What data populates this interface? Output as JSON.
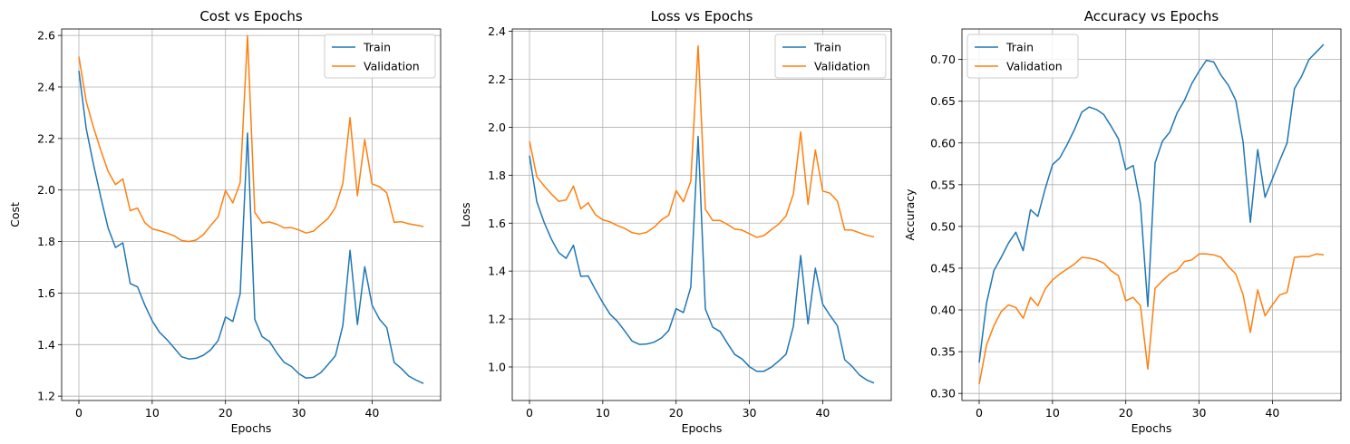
{
  "figure": {
    "colors": {
      "train": "#1f77b4",
      "validation": "#ff7f0e",
      "grid": "#b0b0b0",
      "axes": "#000000"
    }
  },
  "chart_data": [
    {
      "type": "line",
      "title": "Cost vs Epochs",
      "xlabel": "Epochs",
      "ylabel": "Cost",
      "xlim": [
        -2.35,
        49.35
      ],
      "ylim": [
        1.183,
        2.625
      ],
      "xticks": [
        0,
        10,
        20,
        30,
        40
      ],
      "yticks": [
        1.2,
        1.4,
        1.6,
        1.8,
        2.0,
        2.2,
        2.4,
        2.6
      ],
      "ytick_labels": [
        "1.2",
        "1.4",
        "1.6",
        "1.8",
        "2.0",
        "2.2",
        "2.4",
        "2.6"
      ],
      "grid": true,
      "legend": "upper right",
      "x": [
        0,
        1,
        2,
        3,
        4,
        5,
        6,
        7,
        8,
        9,
        10,
        11,
        12,
        13,
        14,
        15,
        16,
        17,
        18,
        19,
        20,
        21,
        22,
        23,
        24,
        25,
        26,
        27,
        28,
        29,
        30,
        31,
        32,
        33,
        34,
        35,
        36,
        37,
        38,
        39,
        40,
        41,
        42,
        43,
        44,
        45,
        46,
        47
      ],
      "series": [
        {
          "name": "Train",
          "color": "#1f77b4",
          "values": [
            2.463,
            2.238,
            2.098,
            1.97,
            1.852,
            1.777,
            1.795,
            1.637,
            1.624,
            1.553,
            1.492,
            1.448,
            1.42,
            1.387,
            1.353,
            1.344,
            1.347,
            1.359,
            1.38,
            1.416,
            1.507,
            1.49,
            1.597,
            2.221,
            1.498,
            1.431,
            1.412,
            1.368,
            1.331,
            1.315,
            1.287,
            1.27,
            1.273,
            1.291,
            1.323,
            1.357,
            1.473,
            1.766,
            1.478,
            1.702,
            1.553,
            1.499,
            1.466,
            1.331,
            1.307,
            1.278,
            1.262,
            1.249
          ]
        },
        {
          "name": "Validation",
          "color": "#ff7f0e",
          "values": [
            2.518,
            2.344,
            2.242,
            2.153,
            2.072,
            2.021,
            2.043,
            1.92,
            1.93,
            1.873,
            1.849,
            1.842,
            1.833,
            1.822,
            1.804,
            1.8,
            1.806,
            1.827,
            1.863,
            1.896,
            1.998,
            1.95,
            2.028,
            2.599,
            1.913,
            1.872,
            1.876,
            1.867,
            1.853,
            1.854,
            1.845,
            1.833,
            1.84,
            1.866,
            1.89,
            1.933,
            2.025,
            2.281,
            1.978,
            2.196,
            2.024,
            2.013,
            1.989,
            1.875,
            1.877,
            1.869,
            1.864,
            1.858
          ]
        }
      ]
    },
    {
      "type": "line",
      "title": "Loss vs Epochs",
      "xlabel": "Epochs",
      "ylabel": "Loss",
      "xlim": [
        -2.35,
        49.35
      ],
      "ylim": [
        0.86,
        2.41
      ],
      "xticks": [
        0,
        10,
        20,
        30,
        40
      ],
      "yticks": [
        1.0,
        1.2,
        1.4,
        1.6,
        1.8,
        2.0,
        2.2,
        2.4
      ],
      "ytick_labels": [
        "1.0",
        "1.2",
        "1.4",
        "1.6",
        "1.8",
        "2.0",
        "2.2",
        "2.4"
      ],
      "grid": true,
      "legend": "upper right",
      "x": [
        0,
        1,
        2,
        3,
        4,
        5,
        6,
        7,
        8,
        9,
        10,
        11,
        12,
        13,
        14,
        15,
        16,
        17,
        18,
        19,
        20,
        21,
        22,
        23,
        24,
        25,
        26,
        27,
        28,
        29,
        30,
        31,
        32,
        33,
        34,
        35,
        36,
        37,
        38,
        39,
        40,
        41,
        42,
        43,
        44,
        45,
        46,
        47
      ],
      "series": [
        {
          "name": "Train",
          "color": "#1f77b4",
          "values": [
            1.882,
            1.689,
            1.603,
            1.532,
            1.477,
            1.453,
            1.508,
            1.378,
            1.38,
            1.322,
            1.268,
            1.22,
            1.19,
            1.15,
            1.108,
            1.094,
            1.096,
            1.103,
            1.121,
            1.152,
            1.243,
            1.227,
            1.333,
            1.962,
            1.242,
            1.166,
            1.148,
            1.099,
            1.052,
            1.033,
            1.001,
            0.982,
            0.982,
            0.999,
            1.025,
            1.053,
            1.17,
            1.465,
            1.18,
            1.412,
            1.262,
            1.215,
            1.172,
            1.03,
            1.003,
            0.967,
            0.946,
            0.933
          ]
        },
        {
          "name": "Validation",
          "color": "#ff7f0e",
          "values": [
            1.942,
            1.794,
            1.755,
            1.721,
            1.691,
            1.697,
            1.755,
            1.66,
            1.685,
            1.635,
            1.614,
            1.605,
            1.59,
            1.578,
            1.56,
            1.555,
            1.562,
            1.583,
            1.613,
            1.633,
            1.736,
            1.689,
            1.775,
            2.34,
            1.658,
            1.611,
            1.611,
            1.595,
            1.575,
            1.571,
            1.556,
            1.541,
            1.548,
            1.573,
            1.596,
            1.63,
            1.722,
            1.981,
            1.678,
            1.905,
            1.734,
            1.725,
            1.692,
            1.572,
            1.571,
            1.56,
            1.549,
            1.543
          ]
        }
      ]
    },
    {
      "type": "line",
      "title": "Accuracy vs Epochs",
      "xlabel": "Epochs",
      "ylabel": "Accuracy",
      "xlim": [
        -2.35,
        49.35
      ],
      "ylim": [
        0.2915,
        0.7365
      ],
      "xticks": [
        0,
        10,
        20,
        30,
        40
      ],
      "yticks": [
        0.3,
        0.35,
        0.4,
        0.45,
        0.5,
        0.55,
        0.6,
        0.65,
        0.7
      ],
      "ytick_labels": [
        "0.30",
        "0.35",
        "0.40",
        "0.45",
        "0.50",
        "0.55",
        "0.60",
        "0.65",
        "0.70"
      ],
      "grid": true,
      "legend": "upper left",
      "x": [
        0,
        1,
        2,
        3,
        4,
        5,
        6,
        7,
        8,
        9,
        10,
        11,
        12,
        13,
        14,
        15,
        16,
        17,
        18,
        19,
        20,
        21,
        22,
        23,
        24,
        25,
        26,
        27,
        28,
        29,
        30,
        31,
        32,
        33,
        34,
        35,
        36,
        37,
        38,
        39,
        40,
        41,
        42,
        43,
        44,
        45,
        46,
        47
      ],
      "series": [
        {
          "name": "Train",
          "color": "#1f77b4",
          "values": [
            0.337,
            0.408,
            0.447,
            0.463,
            0.48,
            0.493,
            0.471,
            0.52,
            0.512,
            0.545,
            0.574,
            0.582,
            0.598,
            0.616,
            0.637,
            0.643,
            0.64,
            0.634,
            0.62,
            0.605,
            0.568,
            0.573,
            0.527,
            0.404,
            0.576,
            0.602,
            0.613,
            0.636,
            0.651,
            0.671,
            0.686,
            0.699,
            0.697,
            0.681,
            0.669,
            0.651,
            0.601,
            0.505,
            0.592,
            0.535,
            0.557,
            0.579,
            0.6,
            0.665,
            0.68,
            0.7,
            0.709,
            0.718
          ]
        },
        {
          "name": "Validation",
          "color": "#ff7f0e",
          "values": [
            0.311,
            0.358,
            0.381,
            0.398,
            0.406,
            0.403,
            0.39,
            0.415,
            0.405,
            0.425,
            0.436,
            0.443,
            0.449,
            0.455,
            0.463,
            0.462,
            0.46,
            0.456,
            0.447,
            0.441,
            0.411,
            0.415,
            0.405,
            0.329,
            0.426,
            0.435,
            0.443,
            0.447,
            0.458,
            0.46,
            0.467,
            0.467,
            0.466,
            0.463,
            0.452,
            0.443,
            0.418,
            0.373,
            0.424,
            0.393,
            0.406,
            0.418,
            0.421,
            0.463,
            0.464,
            0.464,
            0.467,
            0.466
          ]
        }
      ]
    }
  ]
}
